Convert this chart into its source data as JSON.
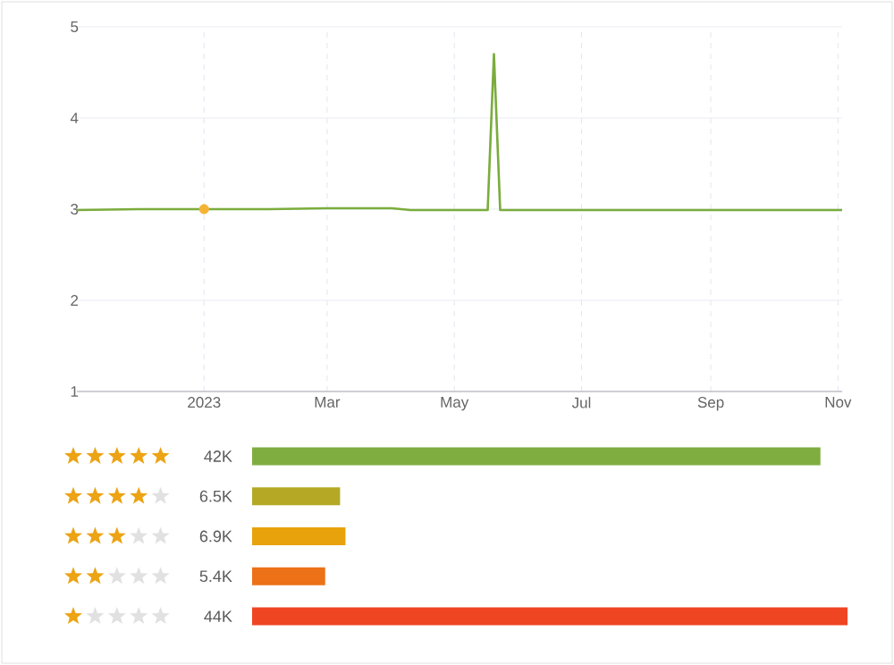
{
  "chart_data": [
    {
      "type": "line",
      "x": [
        "2022-11-01",
        "2022-12-01",
        "2023-01-01",
        "2023-02-01",
        "2023-03-01",
        "2023-04-01",
        "2023-04-10",
        "2023-05-01",
        "2023-05-17",
        "2023-05-20",
        "2023-05-23",
        "2023-07-01",
        "2023-09-01",
        "2023-11-03"
      ],
      "series": [
        {
          "color": "#7aac3c",
          "values": [
            2.99,
            3.0,
            3.0,
            3.0,
            3.01,
            3.01,
            2.99,
            2.99,
            2.99,
            4.7,
            2.99,
            2.99,
            2.99,
            2.99
          ]
        },
        {
          "type": "scatter",
          "color": "#f5b335",
          "x": [
            "2023-01-01"
          ],
          "values": [
            3.0
          ]
        }
      ],
      "xlim": [
        "2022-11-01",
        "2023-11-03"
      ],
      "xticks": [
        {
          "value": "2023-01-01",
          "label": "2023"
        },
        {
          "value": "2023-03-01",
          "label": "Mar"
        },
        {
          "value": "2023-05-01",
          "label": "May"
        },
        {
          "value": "2023-07-01",
          "label": "Jul"
        },
        {
          "value": "2023-09-01",
          "label": "Sep"
        },
        {
          "value": "2023-11-01",
          "label": "Nov"
        }
      ],
      "ylim": [
        1,
        5
      ],
      "yticks": [
        1,
        2,
        3,
        4,
        5
      ],
      "grid": true
    },
    {
      "type": "bar",
      "orientation": "horizontal",
      "categories": [
        null,
        null,
        null,
        null,
        null
      ],
      "values": [
        42000,
        6500,
        6900,
        5400,
        44000
      ],
      "colors": [
        "#7fad3f",
        "#b4a825",
        "#e8a20b",
        "#ec7117",
        "#ef4523"
      ],
      "value_labels": [
        "42K",
        "6.5K",
        "6.9K",
        "5.4K",
        "44K"
      ],
      "tick_labels": false
    }
  ]
}
